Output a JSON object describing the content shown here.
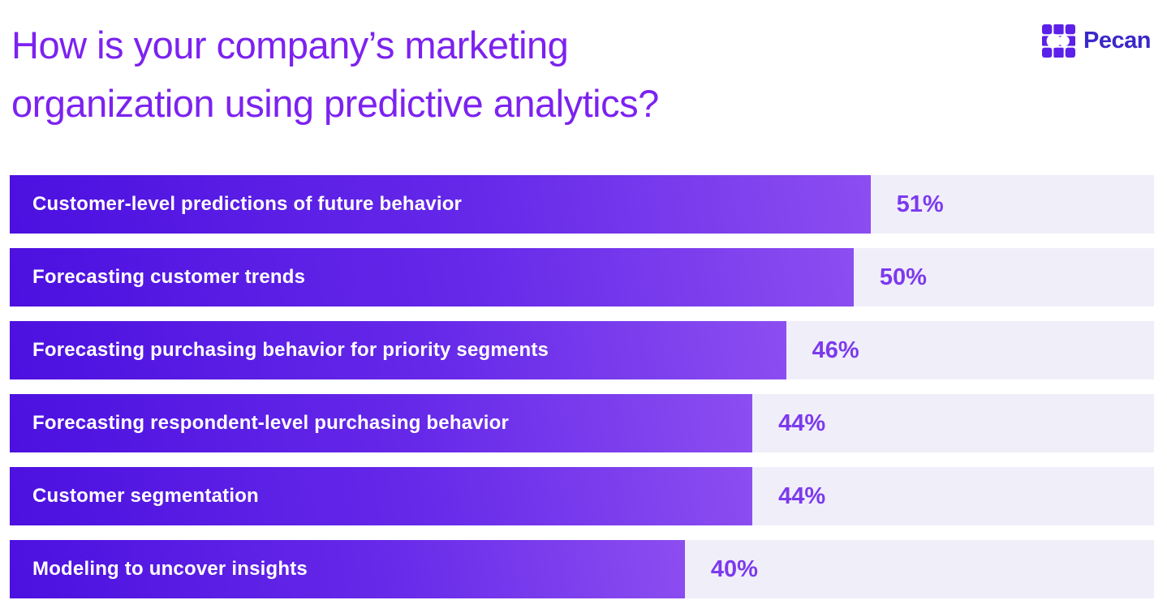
{
  "header": {
    "title_line1": "How is your company’s marketing",
    "title_line2": "organization using predictive analytics?",
    "brand": {
      "name": "Pecan",
      "logo_icon": "pecan-squares-logo"
    }
  },
  "colors": {
    "title_text": "#7C22F0",
    "bar_gradient_start": "#4C10E0",
    "bar_gradient_end": "#8C4EF0",
    "bar_track": "#F0EEF9",
    "value_label": "#7C3AED",
    "logo_mark": "#5B21E8",
    "logo_wordmark": "#3B28C8",
    "background": "#FFFFFF"
  },
  "chart_data": {
    "type": "bar",
    "orientation": "horizontal",
    "title": "How is your company’s marketing organization using predictive analytics?",
    "unit": "%",
    "categories": [
      "Customer-level predictions of future behavior",
      "Forecasting customer trends",
      "Forecasting purchasing behavior for priority segments",
      "Forecasting respondent-level purchasing behavior",
      "Customer segmentation",
      "Modeling to uncover insights"
    ],
    "values": [
      51,
      50,
      46,
      44,
      44,
      40
    ],
    "value_labels": [
      "51%",
      "50%",
      "46%",
      "44%",
      "44%",
      "40%"
    ],
    "xlim": [
      0,
      67.8
    ],
    "grid": false,
    "legend": false,
    "value_label_position": "outside-right-of-bar"
  }
}
